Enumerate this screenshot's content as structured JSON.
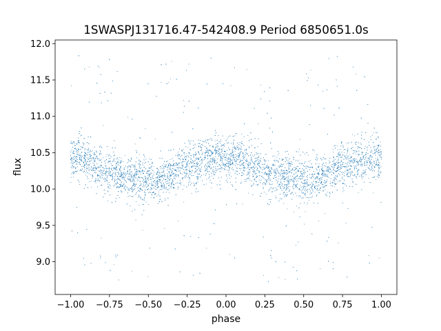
{
  "chart_data": {
    "type": "scatter",
    "title": "1SWASPJ131716.47-542408.9 Period 6850651.0s",
    "xlabel": "phase",
    "ylabel": "flux",
    "xlim": [
      -1.1,
      1.1
    ],
    "ylim": [
      8.55,
      12.05
    ],
    "grid": false,
    "x_ticks": [
      -1.0,
      -0.75,
      -0.5,
      -0.25,
      0.0,
      0.25,
      0.5,
      0.75,
      1.0
    ],
    "x_tick_labels": [
      "−1.00",
      "−0.75",
      "−0.50",
      "−0.25",
      "0.00",
      "0.25",
      "0.50",
      "0.75",
      "1.00"
    ],
    "y_ticks": [
      9.0,
      9.5,
      10.0,
      10.5,
      11.0,
      11.5,
      12.0
    ],
    "y_tick_labels": [
      "9.0",
      "9.5",
      "10.0",
      "10.5",
      "11.0",
      "11.5",
      "12.0"
    ],
    "series_color": "#1f77b4",
    "series": [
      {
        "x": [
          -1.0,
          -0.95,
          -0.9,
          -0.85,
          -0.8,
          -0.75,
          -0.7,
          -0.65,
          -0.6,
          -0.55,
          -0.5,
          -0.45,
          -0.4,
          -0.35,
          -0.3,
          -0.25,
          -0.2,
          -0.15,
          -0.1,
          -0.05,
          0.0,
          0.05,
          0.1,
          0.15,
          0.2,
          0.25,
          0.3,
          0.35,
          0.4,
          0.45,
          0.5,
          0.55,
          0.6,
          0.65,
          0.7,
          0.75,
          0.8,
          0.85,
          0.9,
          0.95,
          1.0
        ],
        "y": [
          10.4,
          10.45,
          10.38,
          10.32,
          10.28,
          10.22,
          10.2,
          10.18,
          10.15,
          10.13,
          10.12,
          10.1,
          10.13,
          10.2,
          10.28,
          10.33,
          10.35,
          10.38,
          10.4,
          10.42,
          10.42,
          10.42,
          10.38,
          10.33,
          10.28,
          10.22,
          10.2,
          10.18,
          10.15,
          10.13,
          10.12,
          10.1,
          10.13,
          10.2,
          10.28,
          10.33,
          10.35,
          10.38,
          10.4,
          10.43,
          10.42
        ],
        "scatter_spread": 0.15,
        "point_count_approx": 24000
      }
    ]
  }
}
